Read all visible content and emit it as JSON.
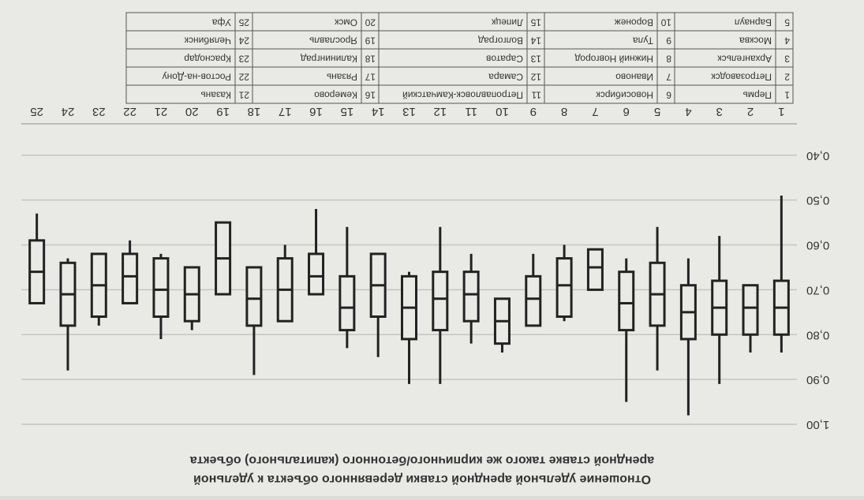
{
  "chart_data": {
    "type": "box",
    "title_lines": [
      "Отношение удельной арендной ставки деревянного объекта к удельной",
      "арендной ставке такого же кирпичного/бетонного (капитального) объекта"
    ],
    "categories": [
      "1",
      "2",
      "3",
      "4",
      "5",
      "6",
      "7",
      "8",
      "9",
      "10",
      "11",
      "12",
      "13",
      "14",
      "15",
      "16",
      "17",
      "18",
      "19",
      "20",
      "21",
      "22",
      "23",
      "24",
      "25"
    ],
    "min": [
      0.49,
      0.69,
      0.58,
      0.63,
      0.56,
      0.63,
      0.61,
      0.6,
      0.62,
      0.72,
      0.62,
      0.56,
      0.66,
      0.62,
      0.56,
      0.52,
      0.6,
      0.65,
      0.55,
      0.65,
      0.62,
      0.59,
      0.62,
      0.63,
      0.53
    ],
    "q1": [
      0.68,
      0.69,
      0.68,
      0.69,
      0.64,
      0.66,
      0.61,
      0.63,
      0.67,
      0.72,
      0.66,
      0.66,
      0.67,
      0.62,
      0.67,
      0.62,
      0.63,
      0.65,
      0.55,
      0.65,
      0.63,
      0.62,
      0.62,
      0.64,
      0.59
    ],
    "median": [
      0.74,
      0.74,
      0.74,
      0.75,
      0.71,
      0.73,
      0.65,
      0.69,
      0.72,
      0.77,
      0.71,
      0.72,
      0.74,
      0.69,
      0.74,
      0.67,
      0.7,
      0.72,
      0.63,
      0.71,
      0.7,
      0.67,
      0.69,
      0.71,
      0.66
    ],
    "q3": [
      0.8,
      0.8,
      0.8,
      0.81,
      0.78,
      0.79,
      0.7,
      0.76,
      0.78,
      0.82,
      0.77,
      0.79,
      0.81,
      0.76,
      0.79,
      0.71,
      0.77,
      0.78,
      0.71,
      0.77,
      0.76,
      0.73,
      0.76,
      0.78,
      0.73
    ],
    "max": [
      0.84,
      0.84,
      0.91,
      0.98,
      0.88,
      0.95,
      0.7,
      0.77,
      0.78,
      0.84,
      0.82,
      0.91,
      0.91,
      0.85,
      0.83,
      0.71,
      0.77,
      0.89,
      0.71,
      0.79,
      0.81,
      0.73,
      0.78,
      0.88,
      0.73
    ],
    "color": "#222222",
    "ylim": [
      0.33,
      1.0
    ],
    "yticks": [
      {
        "value": 0.4,
        "label": "0,40"
      },
      {
        "value": 0.5,
        "label": "0,50"
      },
      {
        "value": 0.6,
        "label": "0,60"
      },
      {
        "value": 0.7,
        "label": "0,70"
      },
      {
        "value": 0.8,
        "label": "0,80"
      },
      {
        "value": 0.9,
        "label": "0,90"
      },
      {
        "value": 1.0,
        "label": "1,00"
      }
    ],
    "grid": true,
    "cities": [
      "Пермь",
      "Петрозаводск",
      "Архангельск",
      "Москва",
      "Барнаул",
      "Новосибирск",
      "Иваново",
      "Нижний Новгород",
      "Тула",
      "Воронеж",
      "Петропавловск-Камчатский",
      "Самара",
      "Саратов",
      "Волгоград",
      "Липецк",
      "Кемерово",
      "Рязань",
      "Калининград",
      "Ярославль",
      "Омск",
      "Казань",
      "Ростов-на-Дону",
      "Краснодар",
      "Челябинск",
      "Уфа"
    ]
  }
}
